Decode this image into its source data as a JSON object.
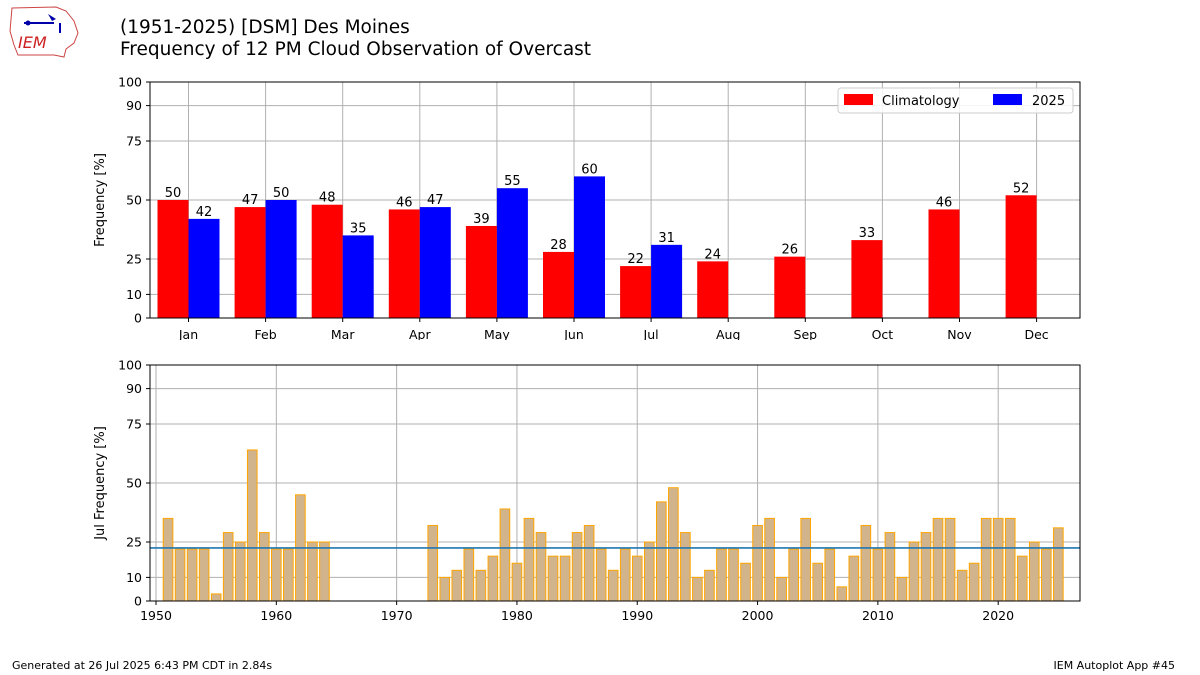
{
  "header": {
    "title_line1": "(1951-2025) [DSM] Des Moines",
    "title_line2": "Frequency of 12 PM Cloud Observation of Overcast"
  },
  "logo": {
    "text": "IEM",
    "icon": "iem-iowa-logo"
  },
  "footer": {
    "generated": "Generated at 26 Jul 2025 6:43 PM CDT in 2.84s",
    "app": "IEM Autoplot App #45"
  },
  "colors": {
    "climatology": "#ff0000",
    "current": "#0000ff",
    "yearly_fill": "#d2b48c",
    "yearly_edge": "#ffa500",
    "average_line": "#1f77b4"
  },
  "chart_data": [
    {
      "type": "bar",
      "ylabel": "Frequency [%]",
      "ylim": [
        0,
        100
      ],
      "yticks": [
        0,
        10,
        25,
        50,
        75,
        90,
        100
      ],
      "grid": true,
      "legend_position": "top-right",
      "categories": [
        "Jan",
        "Feb",
        "Mar",
        "Apr",
        "May",
        "Jun",
        "Jul",
        "Aug",
        "Sep",
        "Oct",
        "Nov",
        "Dec"
      ],
      "series": [
        {
          "name": "Climatology",
          "color": "#ff0000",
          "values": [
            50,
            47,
            48,
            46,
            39,
            28,
            22,
            24,
            26,
            33,
            46,
            52
          ]
        },
        {
          "name": "2025",
          "color": "#0000ff",
          "values": [
            42,
            50,
            35,
            47,
            55,
            60,
            31,
            null,
            null,
            null,
            null,
            null
          ]
        }
      ]
    },
    {
      "type": "bar",
      "ylabel": "Jul Frequency [%]",
      "ylim": [
        0,
        100
      ],
      "yticks": [
        0,
        10,
        25,
        50,
        75,
        90,
        100
      ],
      "xticks": [
        1950,
        1960,
        1970,
        1980,
        1990,
        2000,
        2010,
        2020
      ],
      "xlim": [
        1949.5,
        2026.8
      ],
      "grid": true,
      "average": 22.5,
      "x": [
        1951,
        1952,
        1953,
        1954,
        1955,
        1956,
        1957,
        1958,
        1959,
        1960,
        1961,
        1962,
        1963,
        1964,
        1973,
        1974,
        1975,
        1976,
        1977,
        1978,
        1979,
        1980,
        1981,
        1982,
        1983,
        1984,
        1985,
        1986,
        1987,
        1988,
        1989,
        1990,
        1991,
        1992,
        1993,
        1994,
        1995,
        1996,
        1997,
        1998,
        1999,
        2000,
        2001,
        2002,
        2003,
        2004,
        2005,
        2006,
        2007,
        2008,
        2009,
        2010,
        2011,
        2012,
        2013,
        2014,
        2015,
        2016,
        2017,
        2018,
        2019,
        2020,
        2021,
        2022,
        2023,
        2024,
        2025
      ],
      "values": [
        35,
        22,
        22,
        22,
        3,
        29,
        25,
        64,
        29,
        22,
        22,
        45,
        25,
        25,
        32,
        10,
        13,
        22,
        13,
        19,
        39,
        16,
        35,
        29,
        19,
        19,
        29,
        32,
        22,
        13,
        22,
        19,
        25,
        42,
        48,
        29,
        10,
        13,
        22,
        22,
        16,
        32,
        35,
        10,
        22,
        35,
        16,
        22,
        6,
        19,
        32,
        22,
        29,
        10,
        25,
        29,
        35,
        35,
        13,
        16,
        35,
        35,
        35,
        19,
        25,
        22,
        31
      ]
    }
  ]
}
